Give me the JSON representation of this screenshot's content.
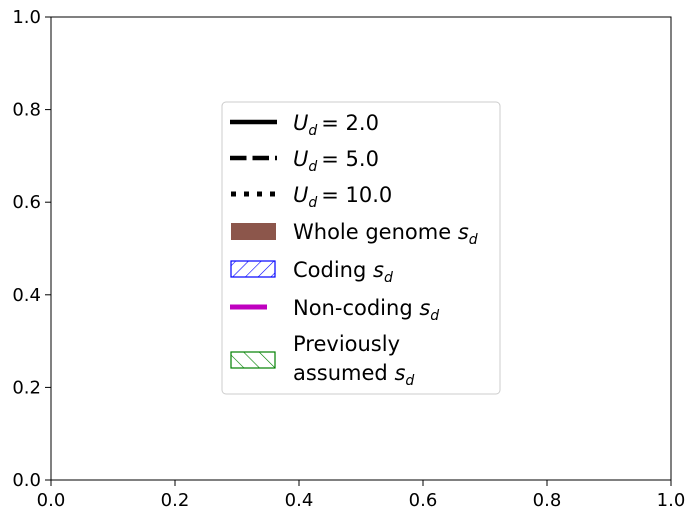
{
  "chart_data": {
    "type": "line",
    "title": "",
    "xlabel": "",
    "ylabel": "",
    "xlim": [
      0.0,
      1.0
    ],
    "ylim": [
      0.0,
      1.0
    ],
    "xticks": [
      "0.0",
      "0.2",
      "0.4",
      "0.6",
      "0.8",
      "1.0"
    ],
    "yticks": [
      "0.0",
      "0.2",
      "0.4",
      "0.6",
      "0.8",
      "1.0"
    ],
    "grid": false,
    "legend_position": "center",
    "series": [],
    "legend": {
      "line_entries": [
        {
          "var": "U",
          "sub": "d",
          "value": "= 2.0",
          "style": "solid",
          "color": "#000000"
        },
        {
          "var": "U",
          "sub": "d",
          "value": "= 5.0",
          "style": "dashed",
          "color": "#000000"
        },
        {
          "var": "U",
          "sub": "d",
          "value": "= 10.0",
          "style": "dotted",
          "color": "#000000"
        }
      ],
      "whole_genome": {
        "label": "Whole genome ",
        "var": "s",
        "sub": "d",
        "fill": "#8c564b"
      },
      "coding": {
        "label": "Coding ",
        "var": "s",
        "sub": "d",
        "hatch_color": "#0000ff"
      },
      "noncoding": {
        "label": "Non-coding ",
        "var": "s",
        "sub": "d",
        "color": "#bf00bf"
      },
      "previous": {
        "label_line1": "Previously",
        "label_line2": "assumed ",
        "var": "s",
        "sub": "d",
        "hatch_color": "#008000"
      }
    }
  }
}
